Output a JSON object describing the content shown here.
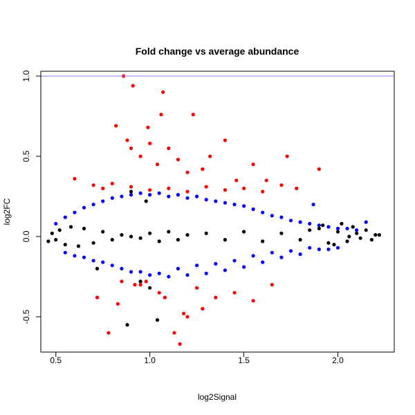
{
  "chart_data": {
    "type": "scatter",
    "title": "Fold change vs average abundance",
    "xlabel": "log2Signal",
    "ylabel": "log2FC",
    "xlim": [
      0.42,
      2.3
    ],
    "ylim": [
      -0.72,
      1.03
    ],
    "x_ticks": [
      0.5,
      1.0,
      1.5,
      2.0
    ],
    "x_tick_labels": [
      "0.5",
      "1.0",
      "1.5",
      "2.0"
    ],
    "y_ticks": [
      -0.5,
      0.0,
      0.5,
      1.0
    ],
    "y_tick_labels": [
      "-0.5",
      "0.0",
      "0.5",
      "1.0"
    ],
    "reference_line": {
      "y": 1.0,
      "color": "#8080ff"
    },
    "grid": false,
    "legend": "none",
    "series": [
      {
        "color": "#000000",
        "x": [
          0.46,
          0.48,
          0.5,
          0.52,
          0.55,
          0.58,
          0.62,
          0.65,
          0.7,
          0.75,
          0.8,
          0.85,
          0.9,
          0.95,
          1.0,
          1.05,
          1.1,
          1.15,
          1.2,
          1.3,
          1.4,
          1.5,
          1.6,
          1.7,
          1.8,
          1.85,
          1.9,
          1.95,
          2.0,
          2.05,
          2.08,
          2.1,
          2.12,
          2.15,
          2.18,
          2.2,
          2.22,
          1.92,
          1.98,
          2.02,
          2.06,
          0.9,
          1.0,
          0.72,
          1.04,
          0.88,
          0.95,
          0.98
        ],
        "y": [
          -0.03,
          0.02,
          -0.02,
          0.04,
          -0.05,
          0.06,
          -0.06,
          0.05,
          -0.04,
          0.03,
          -0.02,
          0.01,
          0.0,
          -0.01,
          0.02,
          -0.03,
          0.03,
          -0.02,
          0.01,
          0.02,
          -0.02,
          0.03,
          -0.03,
          0.02,
          -0.02,
          0.04,
          0.05,
          -0.04,
          0.03,
          -0.03,
          0.06,
          0.02,
          -0.01,
          0.04,
          -0.02,
          0.01,
          0.01,
          0.07,
          -0.05,
          0.08,
          0.0,
          0.28,
          -0.32,
          -0.2,
          -0.52,
          -0.55,
          -0.28,
          0.22
        ]
      },
      {
        "color": "#0000ff",
        "x": [
          0.5,
          0.55,
          0.6,
          0.65,
          0.7,
          0.75,
          0.8,
          0.85,
          0.9,
          0.95,
          1.0,
          1.05,
          1.1,
          1.15,
          1.2,
          1.25,
          1.3,
          1.35,
          1.4,
          1.45,
          1.5,
          1.55,
          1.6,
          1.65,
          1.7,
          1.75,
          1.8,
          1.85,
          1.9,
          1.95,
          2.0,
          2.05,
          2.1,
          0.6,
          0.7,
          0.8,
          0.9,
          1.0,
          1.1,
          1.2,
          1.3,
          1.4,
          1.5,
          1.6,
          1.7,
          1.8,
          1.9,
          2.0,
          2.15,
          1.87,
          1.95,
          0.55,
          0.65,
          0.75,
          0.85,
          0.95,
          1.05,
          1.15,
          1.25,
          1.35,
          1.45,
          1.55,
          1.65,
          1.75,
          1.85
        ],
        "y": [
          0.08,
          0.12,
          0.15,
          0.18,
          0.2,
          0.22,
          0.24,
          0.25,
          0.26,
          0.27,
          0.26,
          0.27,
          0.25,
          0.26,
          0.24,
          0.25,
          0.23,
          0.22,
          0.21,
          0.2,
          0.19,
          0.17,
          0.15,
          0.13,
          0.12,
          0.1,
          0.09,
          0.08,
          0.07,
          0.06,
          0.05,
          0.05,
          0.04,
          -0.12,
          -0.15,
          -0.18,
          -0.22,
          -0.24,
          -0.25,
          -0.24,
          -0.23,
          -0.21,
          -0.19,
          -0.16,
          -0.13,
          -0.11,
          -0.08,
          -0.07,
          0.09,
          0.2,
          -0.08,
          -0.1,
          -0.13,
          -0.16,
          -0.2,
          -0.22,
          -0.23,
          -0.2,
          -0.18,
          -0.17,
          -0.15,
          -0.12,
          -0.1,
          -0.09,
          -0.07
        ]
      },
      {
        "color": "#ff0000",
        "x": [
          0.86,
          0.91,
          1.07,
          1.06,
          0.99,
          0.82,
          0.88,
          1.23,
          0.9,
          0.95,
          1.0,
          1.04,
          1.1,
          1.15,
          1.2,
          1.28,
          1.32,
          1.4,
          1.46,
          1.55,
          1.62,
          1.73,
          1.78,
          1.9,
          0.6,
          0.7,
          0.75,
          0.8,
          0.9,
          1.0,
          1.1,
          1.2,
          1.3,
          1.4,
          1.5,
          1.6,
          1.7,
          0.85,
          0.95,
          1.05,
          1.13,
          1.16,
          1.2,
          1.28,
          1.35,
          0.78,
          0.83,
          0.92,
          1.18,
          1.25,
          1.45,
          1.55,
          1.65,
          0.98,
          1.08,
          0.72
        ],
        "y": [
          1.0,
          0.94,
          0.9,
          0.76,
          0.68,
          0.69,
          0.6,
          0.76,
          0.55,
          0.5,
          0.58,
          0.45,
          0.55,
          0.48,
          0.4,
          0.42,
          0.5,
          0.6,
          0.35,
          0.45,
          0.35,
          0.5,
          0.3,
          0.42,
          0.36,
          0.32,
          0.3,
          0.33,
          0.31,
          0.29,
          0.3,
          0.28,
          0.31,
          0.29,
          0.3,
          0.28,
          0.32,
          -0.28,
          -0.3,
          -0.35,
          -0.6,
          -0.67,
          -0.5,
          -0.45,
          -0.38,
          -0.6,
          -0.42,
          -0.3,
          -0.48,
          -0.32,
          -0.35,
          -0.4,
          -0.3,
          -0.28,
          -0.38,
          -0.38
        ]
      }
    ]
  }
}
